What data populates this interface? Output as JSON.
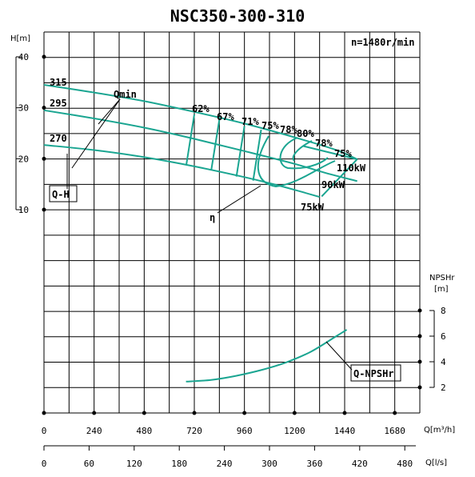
{
  "chart_data": {
    "type": "line",
    "title": "NSC350-300-310",
    "speed_label": "n=1480r/min",
    "x_axis": {
      "label": "Q[m³/h]",
      "range": [
        0,
        1800
      ],
      "ticks": [
        "0",
        "240",
        "480",
        "720",
        "960",
        "1200",
        "1440",
        "1680"
      ],
      "tick_values": [
        0,
        240,
        480,
        720,
        960,
        1200,
        1440,
        1680
      ]
    },
    "x2_axis": {
      "label": "Q[l/s]",
      "range": [
        0,
        500
      ],
      "ticks": [
        "0",
        "60",
        "120",
        "180",
        "240",
        "300",
        "360",
        "420",
        "480"
      ],
      "tick_values": [
        0,
        60,
        120,
        180,
        240,
        300,
        360,
        420,
        480
      ]
    },
    "y_axis": {
      "label": "H[m]",
      "range": [
        10,
        40
      ],
      "ticks": [
        "10",
        "20",
        "30",
        "40"
      ],
      "tick_values": [
        10,
        20,
        30,
        40
      ]
    },
    "y2_axis": {
      "label_top": "NPSHr",
      "label_unit": "[m]",
      "range": [
        2,
        8
      ],
      "ticks": [
        "2",
        "4",
        "6",
        "8"
      ],
      "tick_values": [
        2,
        4,
        6,
        8
      ]
    },
    "grid": true,
    "series": [
      {
        "name": "315",
        "kind": "Q-H",
        "x": [
          0,
          240,
          480,
          720,
          960,
          1200,
          1400,
          1500
        ],
        "y": [
          34.5,
          33.0,
          31.3,
          29.2,
          26.9,
          24.2,
          21.7,
          19.9
        ]
      },
      {
        "name": "295",
        "kind": "Q-H",
        "x": [
          0,
          240,
          480,
          720,
          960,
          1200,
          1350,
          1500
        ],
        "y": [
          29.5,
          27.9,
          26.1,
          23.9,
          21.5,
          19.0,
          17.2,
          15.6
        ]
      },
      {
        "name": "270",
        "kind": "Q-H",
        "x": [
          0,
          240,
          480,
          720,
          960,
          1080,
          1200,
          1320
        ],
        "y": [
          22.7,
          21.7,
          20.3,
          18.5,
          16.4,
          15.2,
          13.9,
          12.5
        ]
      },
      {
        "kind": "Q-NPSHr",
        "x": [
          680,
          800,
          920,
          1040,
          1160,
          1280,
          1400,
          1450
        ],
        "y": [
          2.45,
          2.58,
          2.9,
          3.35,
          3.95,
          4.8,
          6.0,
          6.5
        ]
      }
    ],
    "efficiency_labels": [
      "62%",
      "67%",
      "71%",
      "75%",
      "78%",
      "80%",
      "78%",
      "75%"
    ],
    "efficiency_ticks": [
      {
        "x": 720,
        "top": 28.7,
        "bottom": 18.8
      },
      {
        "x": 840,
        "top": 27.7,
        "bottom": 17.9
      },
      {
        "x": 960,
        "top": 26.4,
        "bottom": 16.5
      },
      {
        "x": 1040,
        "top": 25.7,
        "bottom": 15.7
      }
    ],
    "power_labels": [
      "110kW",
      "90kW",
      "75kW"
    ],
    "annotations": [
      "Qmin",
      "Q-H",
      "η",
      "Q-NPSHr"
    ]
  }
}
